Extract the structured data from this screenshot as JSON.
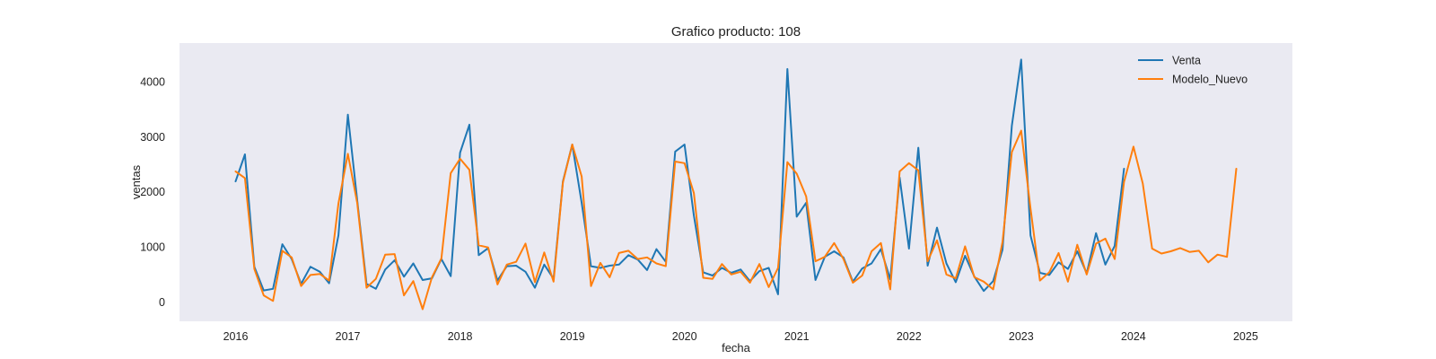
{
  "chart_data": {
    "type": "line",
    "title": "Grafico producto: 108",
    "xlabel": "fecha",
    "ylabel": "ventas",
    "x_tick_labels": [
      "2016",
      "2017",
      "2018",
      "2019",
      "2020",
      "2021",
      "2022",
      "2023",
      "2024",
      "2025"
    ],
    "y_tick_labels": [
      "0",
      "1000",
      "2000",
      "3000",
      "4000"
    ],
    "y_ticks": [
      0,
      1000,
      2000,
      3000,
      4000
    ],
    "xlim": [
      "2015-07",
      "2025-06"
    ],
    "ylim": [
      -350,
      4700
    ],
    "grid": false,
    "legend_position": "top-right",
    "background": "#eaeaf2",
    "x": [
      "2016-01",
      "2016-02",
      "2016-03",
      "2016-04",
      "2016-05",
      "2016-06",
      "2016-07",
      "2016-08",
      "2016-09",
      "2016-10",
      "2016-11",
      "2016-12",
      "2017-01",
      "2017-02",
      "2017-03",
      "2017-04",
      "2017-05",
      "2017-06",
      "2017-07",
      "2017-08",
      "2017-09",
      "2017-10",
      "2017-11",
      "2017-12",
      "2018-01",
      "2018-02",
      "2018-03",
      "2018-04",
      "2018-05",
      "2018-06",
      "2018-07",
      "2018-08",
      "2018-09",
      "2018-10",
      "2018-11",
      "2018-12",
      "2019-01",
      "2019-02",
      "2019-03",
      "2019-04",
      "2019-05",
      "2019-06",
      "2019-07",
      "2019-08",
      "2019-09",
      "2019-10",
      "2019-11",
      "2019-12",
      "2020-01",
      "2020-02",
      "2020-03",
      "2020-04",
      "2020-05",
      "2020-06",
      "2020-07",
      "2020-08",
      "2020-09",
      "2020-10",
      "2020-11",
      "2020-12",
      "2021-01",
      "2021-02",
      "2021-03",
      "2021-04",
      "2021-05",
      "2021-06",
      "2021-07",
      "2021-08",
      "2021-09",
      "2021-10",
      "2021-11",
      "2021-12",
      "2022-01",
      "2022-02",
      "2022-03",
      "2022-04",
      "2022-05",
      "2022-06",
      "2022-07",
      "2022-08",
      "2022-09",
      "2022-10",
      "2022-11",
      "2022-12",
      "2023-01",
      "2023-02",
      "2023-03",
      "2023-04",
      "2023-05",
      "2023-06",
      "2023-07",
      "2023-08",
      "2023-09",
      "2023-10",
      "2023-11",
      "2023-12",
      "2024-01",
      "2024-02",
      "2024-03",
      "2024-04",
      "2024-05",
      "2024-06",
      "2024-07",
      "2024-08",
      "2024-09",
      "2024-10",
      "2024-11",
      "2024-12"
    ],
    "series": [
      {
        "name": "Venta",
        "color": "#1f77b4",
        "values": [
          2190,
          2680,
          640,
          210,
          240,
          1050,
          780,
          330,
          640,
          550,
          340,
          1210,
          3400,
          1850,
          330,
          240,
          590,
          760,
          460,
          700,
          400,
          430,
          780,
          470,
          2710,
          3220,
          850,
          980,
          390,
          650,
          660,
          550,
          260,
          680,
          420,
          2190,
          2860,
          1800,
          650,
          620,
          660,
          680,
          850,
          770,
          580,
          960,
          730,
          2730,
          2860,
          1570,
          540,
          480,
          620,
          530,
          590,
          380,
          560,
          620,
          140,
          4230,
          1550,
          1800,
          400,
          820,
          920,
          810,
          370,
          610,
          700,
          960,
          410,
          2260,
          970,
          2800,
          660,
          1350,
          700,
          360,
          840,
          460,
          200,
          380,
          950,
          3200,
          4400,
          1210,
          530,
          490,
          720,
          600,
          920,
          520,
          1250,
          680,
          1020,
          2420,
          null,
          null,
          null,
          null,
          null,
          null,
          null,
          null,
          null,
          null,
          null,
          null
        ]
      },
      {
        "name": "Modelo_Nuevo",
        "color": "#ff7f0e",
        "values": [
          2370,
          2250,
          600,
          120,
          20,
          930,
          810,
          290,
          490,
          510,
          390,
          1790,
          2690,
          1800,
          260,
          420,
          860,
          870,
          120,
          380,
          -130,
          450,
          790,
          2340,
          2600,
          2400,
          1030,
          990,
          320,
          680,
          730,
          1060,
          360,
          900,
          370,
          2170,
          2860,
          2280,
          290,
          710,
          450,
          890,
          930,
          780,
          810,
          700,
          650,
          2550,
          2520,
          1980,
          440,
          420,
          690,
          500,
          550,
          350,
          690,
          270,
          620,
          2540,
          2330,
          1920,
          740,
          820,
          1070,
          780,
          350,
          480,
          920,
          1070,
          230,
          2370,
          2520,
          2390,
          740,
          1120,
          500,
          430,
          1010,
          450,
          370,
          230,
          1090,
          2720,
          3110,
          1700,
          390,
          540,
          890,
          370,
          1040,
          500,
          1060,
          1150,
          780,
          2180,
          2820,
          2150,
          970,
          880,
          920,
          980,
          910,
          930,
          720,
          860,
          820,
          2420
        ]
      }
    ]
  }
}
